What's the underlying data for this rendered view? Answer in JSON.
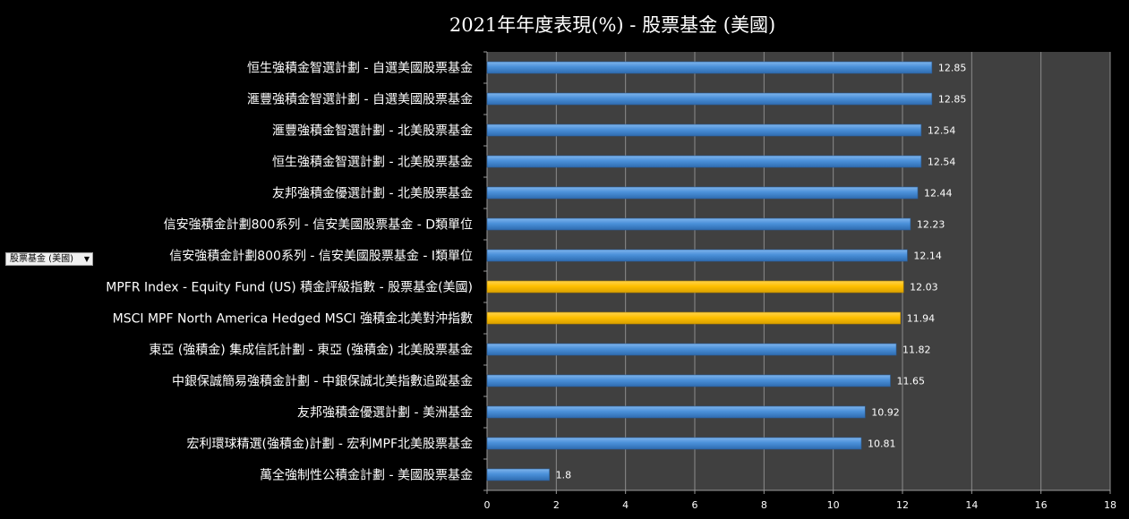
{
  "filter": {
    "label": "股票基金 (美國)",
    "arrow": "▼"
  },
  "chart_data": {
    "type": "bar",
    "orientation": "horizontal",
    "title": "2021年年度表現(%) - 股票基金 (美國)",
    "xlim": [
      0,
      18
    ],
    "xticks": [
      0,
      2,
      4,
      6,
      8,
      10,
      12,
      14,
      16,
      18
    ],
    "grid": true,
    "colors": {
      "default": "#4a90d9",
      "highlight": "#ffc000",
      "plot_bg": "#404040",
      "grid": "#8c8c8c"
    },
    "categories": [
      "恒生強積金智選計劃 - 自選美國股票基金",
      "滙豐強積金智選計劃 - 自選美國股票基金",
      "滙豐強積金智選計劃 - 北美股票基金",
      "恒生強積金智選計劃 - 北美股票基金",
      "友邦強積金優選計劃 - 北美股票基金",
      "信安強積金計劃800系列 - 信安美國股票基金 - D類單位",
      "信安強積金計劃800系列 - 信安美國股票基金 - I類單位",
      "MPFR Index - Equity Fund (US) 積金評級指數 - 股票基金(美國)",
      "MSCI MPF North America Hedged MSCI 強積金北美對沖指數",
      "東亞 (強積金) 集成信託計劃 - 東亞 (強積金) 北美股票基金",
      "中銀保誠簡易強積金計劃 - 中銀保誠北美指數追蹤基金",
      "友邦強積金優選計劃 - 美洲基金",
      "宏利環球精選(強積金)計劃 - 宏利MPF北美股票基金",
      "萬全強制性公積金計劃 - 美國股票基金"
    ],
    "values": [
      12.85,
      12.85,
      12.54,
      12.54,
      12.44,
      12.23,
      12.14,
      12.03,
      11.94,
      11.82,
      11.65,
      10.92,
      10.81,
      1.8
    ],
    "highlighted": [
      false,
      false,
      false,
      false,
      false,
      false,
      false,
      true,
      true,
      false,
      false,
      false,
      false,
      false
    ]
  }
}
